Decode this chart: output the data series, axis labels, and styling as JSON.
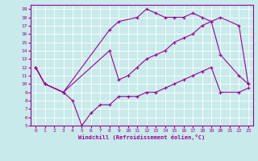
{
  "xlabel": "Windchill (Refroidissement éolien,°C)",
  "xlim": [
    -0.5,
    23.5
  ],
  "ylim": [
    5,
    19.5
  ],
  "xticks": [
    0,
    1,
    2,
    3,
    4,
    5,
    6,
    7,
    8,
    9,
    10,
    11,
    12,
    13,
    14,
    15,
    16,
    17,
    18,
    19,
    20,
    21,
    22,
    23
  ],
  "yticks": [
    5,
    6,
    7,
    8,
    9,
    10,
    11,
    12,
    13,
    14,
    15,
    16,
    17,
    18,
    19
  ],
  "background_color": "#c8eaea",
  "grid_color": "#b0d8d8",
  "line_color": "#990099",
  "line_upper": {
    "x": [
      0,
      1,
      3,
      8,
      9,
      11,
      12,
      13,
      14,
      15,
      16,
      17,
      18,
      19,
      20,
      22,
      23
    ],
    "y": [
      12,
      10,
      9,
      16.5,
      17.5,
      18,
      19,
      18.5,
      18,
      18,
      18,
      18.5,
      18,
      17.5,
      18,
      17,
      10
    ]
  },
  "line_mid": {
    "x": [
      0,
      1,
      3,
      8,
      9,
      10,
      11,
      12,
      13,
      14,
      15,
      16,
      17,
      18,
      19,
      20,
      22,
      23
    ],
    "y": [
      12,
      10,
      9,
      14,
      10.5,
      11,
      12,
      13,
      13.5,
      14,
      15,
      15.5,
      16,
      17,
      17.5,
      13.5,
      11,
      10
    ]
  },
  "line_lower": {
    "x": [
      0,
      1,
      3,
      4,
      5,
      6,
      7,
      8,
      9,
      10,
      11,
      12,
      13,
      14,
      15,
      16,
      17,
      18,
      19,
      20,
      22,
      23
    ],
    "y": [
      12,
      10,
      9,
      8,
      5,
      6.5,
      7.5,
      7.5,
      8.5,
      8.5,
      8.5,
      9,
      9,
      9.5,
      10,
      10.5,
      11,
      11.5,
      12,
      9,
      9,
      9.5
    ]
  }
}
